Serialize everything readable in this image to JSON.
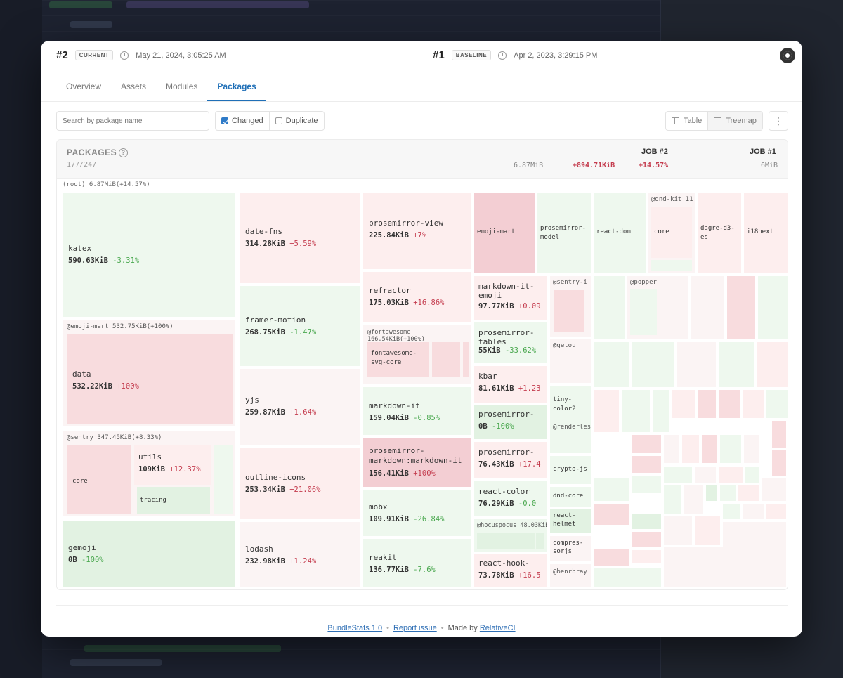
{
  "colors": {
    "accent": "#1f6fb7",
    "increase": "#c43c4e",
    "decrease": "#4aa84f"
  },
  "header": {
    "current": {
      "num": "#2",
      "badge": "CURRENT",
      "date": "May 21, 2024, 3:05:25 AM"
    },
    "baseline": {
      "num": "#1",
      "badge": "BASELINE",
      "date": "Apr 2, 2023, 3:29:15 PM"
    },
    "github_icon": "github-icon"
  },
  "tabs": [
    "Overview",
    "Assets",
    "Modules",
    "Packages"
  ],
  "toolbar": {
    "search_placeholder": "Search by package name",
    "filter_changed": "Changed",
    "filter_duplicate": "Duplicate",
    "view_table": "Table",
    "view_treemap": "Treemap",
    "more": "⋮"
  },
  "panel": {
    "title": "PACKAGES",
    "count": "177/247",
    "job2": "JOB #2",
    "job1": "JOB #1",
    "size": "6.87MiB",
    "delta": "+894.71KiB",
    "delta_pct": "+14.57%",
    "baseline_size": "6MiB"
  },
  "treemap": {
    "root": "(root) 6.87MiB(+14.57%)",
    "groups": {
      "emoji_mart": "@emoji-mart 532.75KiB(+100%)",
      "sentry": "@sentry 347.45KiB(+8.33%)",
      "fortawesome": "@fortawesome 166.54KiB(+100%)",
      "hocuspocus": "@hocuspocus 48.03KiB",
      "dnd_kit": "@dnd-kit 11"
    },
    "cells": {
      "katex": {
        "name": "katex",
        "size": "590.63KiB",
        "delta": "-3.31%"
      },
      "data": {
        "name": "data",
        "size": "532.22KiB",
        "delta": "+100%"
      },
      "core": {
        "name": "core"
      },
      "utils": {
        "name": "utils",
        "size": "109KiB",
        "delta": "+12.37%"
      },
      "tracing": {
        "name": "tracing"
      },
      "gemoji": {
        "name": "gemoji",
        "size": "0B",
        "delta": "-100%"
      },
      "date_fns": {
        "name": "date-fns",
        "size": "314.28KiB",
        "delta": "+5.59%"
      },
      "framer": {
        "name": "framer-motion",
        "size": "268.75KiB",
        "delta": "-1.47%"
      },
      "yjs": {
        "name": "yjs",
        "size": "259.87KiB",
        "delta": "+1.64%"
      },
      "outline": {
        "name": "outline-icons",
        "size": "253.34KiB",
        "delta": "+21.06%"
      },
      "lodash": {
        "name": "lodash",
        "size": "232.98KiB",
        "delta": "+1.24%"
      },
      "pm_view": {
        "name": "prosemirror-view",
        "size": "225.84KiB",
        "delta": "+7%"
      },
      "refractor": {
        "name": "refractor",
        "size": "175.03KiB",
        "delta": "+16.86%"
      },
      "fa_core": {
        "name": "fontawesome-svg-core"
      },
      "markdown_it": {
        "name": "markdown-it",
        "size": "159.04KiB",
        "delta": "-0.85%"
      },
      "pm_md": {
        "name": "prosemirror-markdown:markdown-it",
        "size": "156.41KiB",
        "delta": "+100%"
      },
      "mobx": {
        "name": "mobx",
        "size": "109.91KiB",
        "delta": "-26.84%"
      },
      "reakit": {
        "name": "reakit",
        "size": "136.77KiB",
        "delta": "-7.6%"
      },
      "emoji_mart": {
        "name": "emoji-mart"
      },
      "pm_model": {
        "name": "prosemirror-model"
      },
      "react_dom": {
        "name": "react-dom"
      },
      "dnd_core": {
        "name": "core"
      },
      "dagre": {
        "name": "dagre-d3-es"
      },
      "i18next": {
        "name": "i18next"
      },
      "md_emoji": {
        "name": "markdown-it-emoji",
        "size": "97.77KiB",
        "delta": "+0.09"
      },
      "pm_tables": {
        "name": "prosemirror-tables",
        "size": "55KiB",
        "delta": "-33.62%"
      },
      "kbar": {
        "name": "kbar",
        "size": "81.61KiB",
        "delta": "+1.23"
      },
      "pm_unknown": {
        "name": "prosemirror-",
        "size": "0B",
        "delta": "-100%"
      },
      "pm_x": {
        "name": "prosemirror-",
        "size": "76.43KiB",
        "delta": "+17.4"
      },
      "react_color": {
        "name": "react-color",
        "size": "76.29KiB",
        "delta": "-0.0"
      },
      "react_hook": {
        "name": "react-hook-",
        "size": "73.78KiB",
        "delta": "+16.5"
      },
      "sentry_x": {
        "name": "@sentry-i"
      },
      "popper": {
        "name": "@popper"
      },
      "getou": {
        "name": "@getou"
      },
      "tinycolor": {
        "name": "tiny-color2"
      },
      "renderles": {
        "name": "@renderles"
      },
      "crypto": {
        "name": "crypto-js"
      },
      "dndcore2": {
        "name": "dnd-core"
      },
      "helmet": {
        "name": "react-helmet"
      },
      "compress": {
        "name": "compres-sorjs"
      },
      "benrbray": {
        "name": "@benrbray"
      }
    }
  },
  "footer": {
    "version": "BundleStats 1.0",
    "report": "Report issue",
    "made_by": "Made by",
    "relative": "RelativeCI"
  }
}
